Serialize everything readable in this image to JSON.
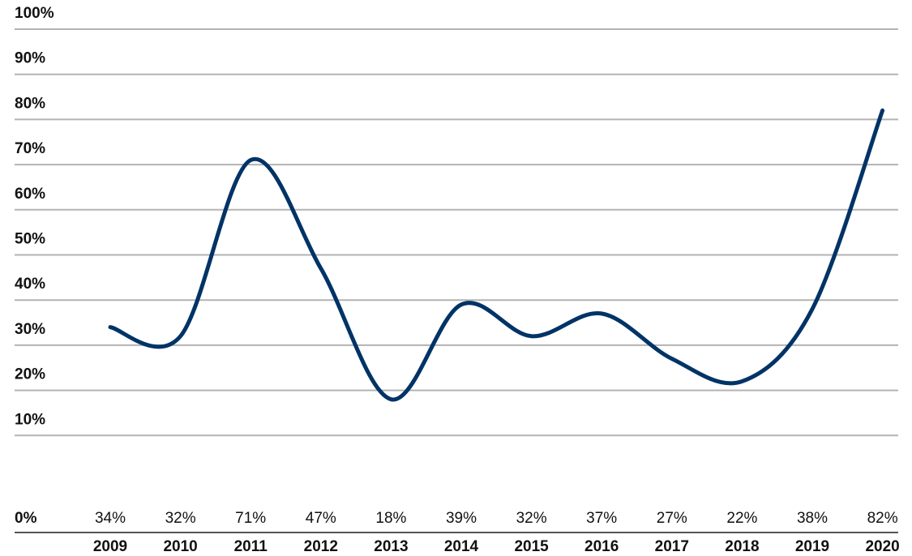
{
  "chart_data": {
    "type": "line",
    "categories": [
      "2009",
      "2010",
      "2011",
      "2012",
      "2013",
      "2014",
      "2015",
      "2016",
      "2017",
      "2018",
      "2019",
      "2020"
    ],
    "values": [
      34,
      32,
      71,
      47,
      18,
      39,
      32,
      37,
      27,
      22,
      38,
      82
    ],
    "value_labels": [
      "34%",
      "32%",
      "71%",
      "47%",
      "18%",
      "39%",
      "32%",
      "37%",
      "27%",
      "22%",
      "38%",
      "82%"
    ],
    "y_tick_labels": [
      "0%",
      "10%",
      "20%",
      "30%",
      "40%",
      "50%",
      "60%",
      "70%",
      "80%",
      "90%",
      "100%"
    ],
    "title": "",
    "xlabel": "",
    "ylabel": "",
    "ylim": [
      0,
      100
    ],
    "grid": true,
    "line_color": "#003366",
    "grid_color": "#b3b3b3",
    "axis_color": "#555555"
  }
}
